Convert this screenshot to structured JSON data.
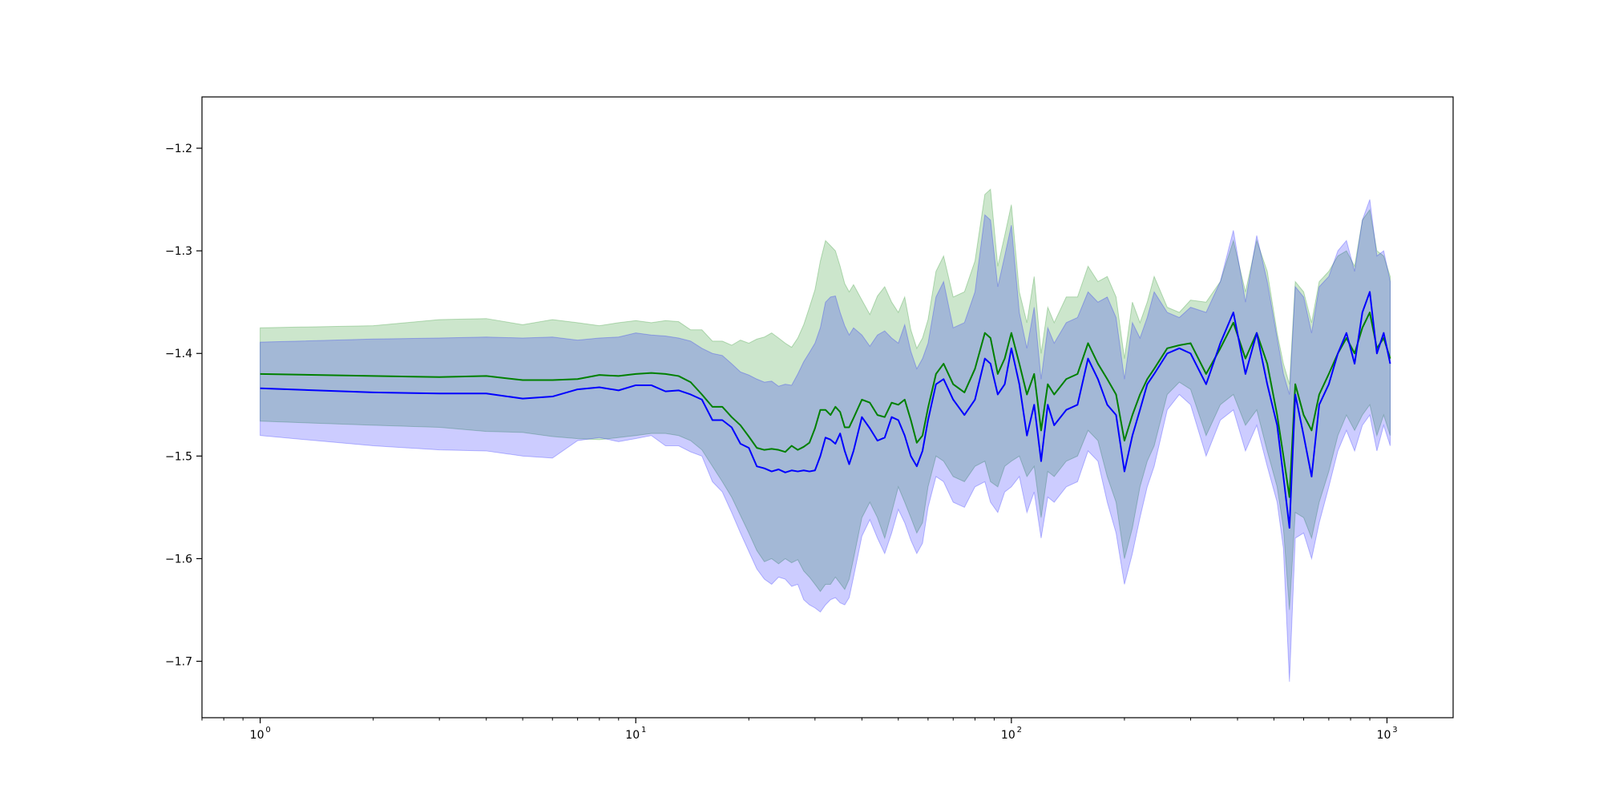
{
  "chart_data": {
    "type": "line",
    "title": "",
    "xlabel": "",
    "ylabel": "",
    "xscale": "log",
    "xlim": [
      0.7,
      1500
    ],
    "ylim": [
      -1.755,
      -1.15
    ],
    "grid": false,
    "legend": "none",
    "x_ticks": [
      {
        "base": "10",
        "exp": "0",
        "value": 1
      },
      {
        "base": "10",
        "exp": "1",
        "value": 10
      },
      {
        "base": "10",
        "exp": "2",
        "value": 100
      },
      {
        "base": "10",
        "exp": "3",
        "value": 1000
      }
    ],
    "y_ticks": [
      {
        "label": "−1.2",
        "value": -1.2
      },
      {
        "label": "−1.3",
        "value": -1.3
      },
      {
        "label": "−1.4",
        "value": -1.4
      },
      {
        "label": "−1.5",
        "value": -1.5
      },
      {
        "label": "−1.6",
        "value": -1.6
      },
      {
        "label": "−1.7",
        "value": -1.7
      }
    ],
    "series": [
      {
        "color": "#008000",
        "band_color": "#008000",
        "x": [
          1,
          2,
          3,
          4,
          5,
          6,
          7,
          8,
          9,
          10,
          11,
          12,
          13,
          14,
          15,
          16,
          17,
          18,
          19,
          20,
          21,
          22,
          23,
          24,
          25,
          26,
          27,
          28,
          29,
          30,
          31,
          32,
          33,
          34,
          35,
          36,
          37,
          38,
          40,
          42,
          44,
          46,
          48,
          50,
          52,
          54,
          56,
          58,
          60,
          63,
          66,
          70,
          75,
          80,
          85,
          88,
          92,
          96,
          100,
          105,
          110,
          115,
          120,
          125,
          130,
          140,
          150,
          160,
          170,
          180,
          190,
          200,
          210,
          220,
          230,
          240,
          260,
          280,
          300,
          330,
          360,
          390,
          420,
          450,
          480,
          510,
          530,
          550,
          570,
          600,
          630,
          660,
          700,
          740,
          780,
          820,
          860,
          900,
          940,
          980,
          1020
        ],
        "y": [
          -1.42,
          -1.422,
          -1.423,
          -1.422,
          -1.426,
          -1.426,
          -1.425,
          -1.421,
          -1.422,
          -1.42,
          -1.419,
          -1.42,
          -1.422,
          -1.428,
          -1.44,
          -1.452,
          -1.452,
          -1.462,
          -1.47,
          -1.481,
          -1.492,
          -1.494,
          -1.493,
          -1.494,
          -1.496,
          -1.49,
          -1.494,
          -1.491,
          -1.487,
          -1.473,
          -1.455,
          -1.455,
          -1.46,
          -1.452,
          -1.457,
          -1.472,
          -1.472,
          -1.463,
          -1.445,
          -1.448,
          -1.46,
          -1.462,
          -1.448,
          -1.45,
          -1.445,
          -1.465,
          -1.487,
          -1.48,
          -1.453,
          -1.42,
          -1.41,
          -1.43,
          -1.438,
          -1.415,
          -1.38,
          -1.385,
          -1.42,
          -1.405,
          -1.38,
          -1.41,
          -1.44,
          -1.42,
          -1.475,
          -1.43,
          -1.44,
          -1.425,
          -1.42,
          -1.39,
          -1.41,
          -1.425,
          -1.44,
          -1.485,
          -1.46,
          -1.44,
          -1.425,
          -1.415,
          -1.395,
          -1.392,
          -1.39,
          -1.42,
          -1.395,
          -1.37,
          -1.405,
          -1.38,
          -1.41,
          -1.46,
          -1.5,
          -1.54,
          -1.43,
          -1.46,
          -1.475,
          -1.44,
          -1.42,
          -1.4,
          -1.385,
          -1.4,
          -1.375,
          -1.36,
          -1.395,
          -1.385,
          -1.405
        ],
        "upper": [
          -1.375,
          -1.373,
          -1.367,
          -1.366,
          -1.372,
          -1.367,
          -1.37,
          -1.373,
          -1.37,
          -1.368,
          -1.37,
          -1.368,
          -1.369,
          -1.377,
          -1.377,
          -1.388,
          -1.388,
          -1.392,
          -1.387,
          -1.39,
          -1.386,
          -1.384,
          -1.38,
          -1.385,
          -1.39,
          -1.394,
          -1.385,
          -1.372,
          -1.355,
          -1.338,
          -1.31,
          -1.29,
          -1.295,
          -1.3,
          -1.315,
          -1.332,
          -1.34,
          -1.333,
          -1.348,
          -1.362,
          -1.344,
          -1.335,
          -1.35,
          -1.36,
          -1.345,
          -1.377,
          -1.395,
          -1.385,
          -1.367,
          -1.32,
          -1.305,
          -1.345,
          -1.34,
          -1.31,
          -1.245,
          -1.24,
          -1.315,
          -1.285,
          -1.255,
          -1.34,
          -1.37,
          -1.325,
          -1.4,
          -1.355,
          -1.37,
          -1.345,
          -1.345,
          -1.315,
          -1.33,
          -1.325,
          -1.345,
          -1.405,
          -1.35,
          -1.37,
          -1.35,
          -1.325,
          -1.355,
          -1.36,
          -1.348,
          -1.35,
          -1.33,
          -1.29,
          -1.34,
          -1.29,
          -1.32,
          -1.38,
          -1.41,
          -1.43,
          -1.33,
          -1.34,
          -1.37,
          -1.33,
          -1.32,
          -1.305,
          -1.3,
          -1.315,
          -1.27,
          -1.26,
          -1.3,
          -1.305,
          -1.325
        ],
        "lower": [
          -1.466,
          -1.47,
          -1.472,
          -1.476,
          -1.477,
          -1.481,
          -1.483,
          -1.484,
          -1.482,
          -1.48,
          -1.478,
          -1.478,
          -1.48,
          -1.485,
          -1.494,
          -1.51,
          -1.525,
          -1.54,
          -1.558,
          -1.575,
          -1.592,
          -1.603,
          -1.6,
          -1.605,
          -1.6,
          -1.604,
          -1.601,
          -1.612,
          -1.618,
          -1.625,
          -1.632,
          -1.625,
          -1.625,
          -1.618,
          -1.624,
          -1.63,
          -1.62,
          -1.6,
          -1.56,
          -1.545,
          -1.56,
          -1.58,
          -1.555,
          -1.53,
          -1.545,
          -1.56,
          -1.575,
          -1.565,
          -1.53,
          -1.5,
          -1.505,
          -1.52,
          -1.525,
          -1.51,
          -1.505,
          -1.525,
          -1.53,
          -1.51,
          -1.505,
          -1.5,
          -1.52,
          -1.51,
          -1.56,
          -1.515,
          -1.52,
          -1.505,
          -1.5,
          -1.475,
          -1.485,
          -1.52,
          -1.545,
          -1.6,
          -1.57,
          -1.53,
          -1.505,
          -1.49,
          -1.44,
          -1.428,
          -1.435,
          -1.48,
          -1.45,
          -1.44,
          -1.47,
          -1.455,
          -1.495,
          -1.53,
          -1.57,
          -1.65,
          -1.555,
          -1.56,
          -1.58,
          -1.545,
          -1.515,
          -1.48,
          -1.46,
          -1.475,
          -1.46,
          -1.45,
          -1.48,
          -1.46,
          -1.48
        ]
      },
      {
        "color": "#0000ff",
        "band_color": "#0000ff",
        "x": [
          1,
          2,
          3,
          4,
          5,
          6,
          7,
          8,
          9,
          10,
          11,
          12,
          13,
          14,
          15,
          16,
          17,
          18,
          19,
          20,
          21,
          22,
          23,
          24,
          25,
          26,
          27,
          28,
          29,
          30,
          31,
          32,
          33,
          34,
          35,
          36,
          37,
          38,
          40,
          42,
          44,
          46,
          48,
          50,
          52,
          54,
          56,
          58,
          60,
          63,
          66,
          70,
          75,
          80,
          85,
          88,
          92,
          96,
          100,
          105,
          110,
          115,
          120,
          125,
          130,
          140,
          150,
          160,
          170,
          180,
          190,
          200,
          210,
          220,
          230,
          240,
          260,
          280,
          300,
          330,
          360,
          390,
          420,
          450,
          480,
          510,
          530,
          550,
          570,
          600,
          630,
          660,
          700,
          740,
          780,
          820,
          860,
          900,
          940,
          980,
          1020
        ],
        "y": [
          -1.434,
          -1.438,
          -1.439,
          -1.439,
          -1.444,
          -1.442,
          -1.435,
          -1.433,
          -1.436,
          -1.431,
          -1.431,
          -1.437,
          -1.436,
          -1.44,
          -1.445,
          -1.465,
          -1.465,
          -1.472,
          -1.488,
          -1.492,
          -1.51,
          -1.512,
          -1.515,
          -1.513,
          -1.516,
          -1.514,
          -1.515,
          -1.514,
          -1.515,
          -1.514,
          -1.5,
          -1.482,
          -1.484,
          -1.488,
          -1.478,
          -1.495,
          -1.508,
          -1.495,
          -1.462,
          -1.473,
          -1.485,
          -1.482,
          -1.462,
          -1.465,
          -1.48,
          -1.5,
          -1.51,
          -1.495,
          -1.465,
          -1.43,
          -1.425,
          -1.445,
          -1.46,
          -1.445,
          -1.405,
          -1.41,
          -1.44,
          -1.43,
          -1.395,
          -1.43,
          -1.48,
          -1.45,
          -1.505,
          -1.45,
          -1.47,
          -1.455,
          -1.45,
          -1.405,
          -1.425,
          -1.45,
          -1.46,
          -1.515,
          -1.48,
          -1.455,
          -1.43,
          -1.42,
          -1.4,
          -1.395,
          -1.4,
          -1.43,
          -1.39,
          -1.36,
          -1.42,
          -1.38,
          -1.43,
          -1.47,
          -1.52,
          -1.57,
          -1.44,
          -1.48,
          -1.52,
          -1.45,
          -1.43,
          -1.4,
          -1.38,
          -1.41,
          -1.36,
          -1.34,
          -1.4,
          -1.38,
          -1.41
        ],
        "upper": [
          -1.389,
          -1.386,
          -1.385,
          -1.384,
          -1.385,
          -1.384,
          -1.387,
          -1.385,
          -1.384,
          -1.38,
          -1.382,
          -1.383,
          -1.385,
          -1.388,
          -1.395,
          -1.4,
          -1.402,
          -1.41,
          -1.418,
          -1.421,
          -1.425,
          -1.428,
          -1.427,
          -1.432,
          -1.43,
          -1.431,
          -1.42,
          -1.408,
          -1.399,
          -1.39,
          -1.375,
          -1.35,
          -1.345,
          -1.344,
          -1.36,
          -1.373,
          -1.382,
          -1.375,
          -1.382,
          -1.393,
          -1.382,
          -1.378,
          -1.385,
          -1.39,
          -1.372,
          -1.398,
          -1.415,
          -1.405,
          -1.39,
          -1.345,
          -1.33,
          -1.375,
          -1.37,
          -1.34,
          -1.265,
          -1.27,
          -1.335,
          -1.305,
          -1.275,
          -1.36,
          -1.395,
          -1.355,
          -1.425,
          -1.375,
          -1.39,
          -1.37,
          -1.365,
          -1.34,
          -1.35,
          -1.345,
          -1.365,
          -1.425,
          -1.37,
          -1.385,
          -1.365,
          -1.34,
          -1.36,
          -1.365,
          -1.355,
          -1.36,
          -1.33,
          -1.28,
          -1.35,
          -1.285,
          -1.33,
          -1.385,
          -1.42,
          -1.44,
          -1.335,
          -1.345,
          -1.38,
          -1.335,
          -1.325,
          -1.3,
          -1.29,
          -1.32,
          -1.27,
          -1.25,
          -1.305,
          -1.3,
          -1.33
        ],
        "lower": [
          -1.48,
          -1.49,
          -1.494,
          -1.495,
          -1.5,
          -1.502,
          -1.485,
          -1.482,
          -1.486,
          -1.483,
          -1.48,
          -1.49,
          -1.49,
          -1.496,
          -1.5,
          -1.525,
          -1.535,
          -1.555,
          -1.575,
          -1.593,
          -1.61,
          -1.62,
          -1.625,
          -1.618,
          -1.62,
          -1.627,
          -1.625,
          -1.64,
          -1.645,
          -1.648,
          -1.652,
          -1.645,
          -1.64,
          -1.638,
          -1.643,
          -1.645,
          -1.638,
          -1.618,
          -1.578,
          -1.562,
          -1.58,
          -1.595,
          -1.575,
          -1.552,
          -1.565,
          -1.582,
          -1.595,
          -1.585,
          -1.55,
          -1.52,
          -1.525,
          -1.545,
          -1.55,
          -1.53,
          -1.525,
          -1.545,
          -1.555,
          -1.535,
          -1.53,
          -1.52,
          -1.555,
          -1.535,
          -1.58,
          -1.54,
          -1.545,
          -1.53,
          -1.525,
          -1.495,
          -1.505,
          -1.545,
          -1.575,
          -1.625,
          -1.595,
          -1.56,
          -1.53,
          -1.51,
          -1.455,
          -1.44,
          -1.45,
          -1.5,
          -1.465,
          -1.455,
          -1.495,
          -1.47,
          -1.51,
          -1.545,
          -1.59,
          -1.72,
          -1.58,
          -1.575,
          -1.6,
          -1.565,
          -1.53,
          -1.495,
          -1.475,
          -1.495,
          -1.47,
          -1.46,
          -1.495,
          -1.47,
          -1.49
        ]
      }
    ]
  }
}
